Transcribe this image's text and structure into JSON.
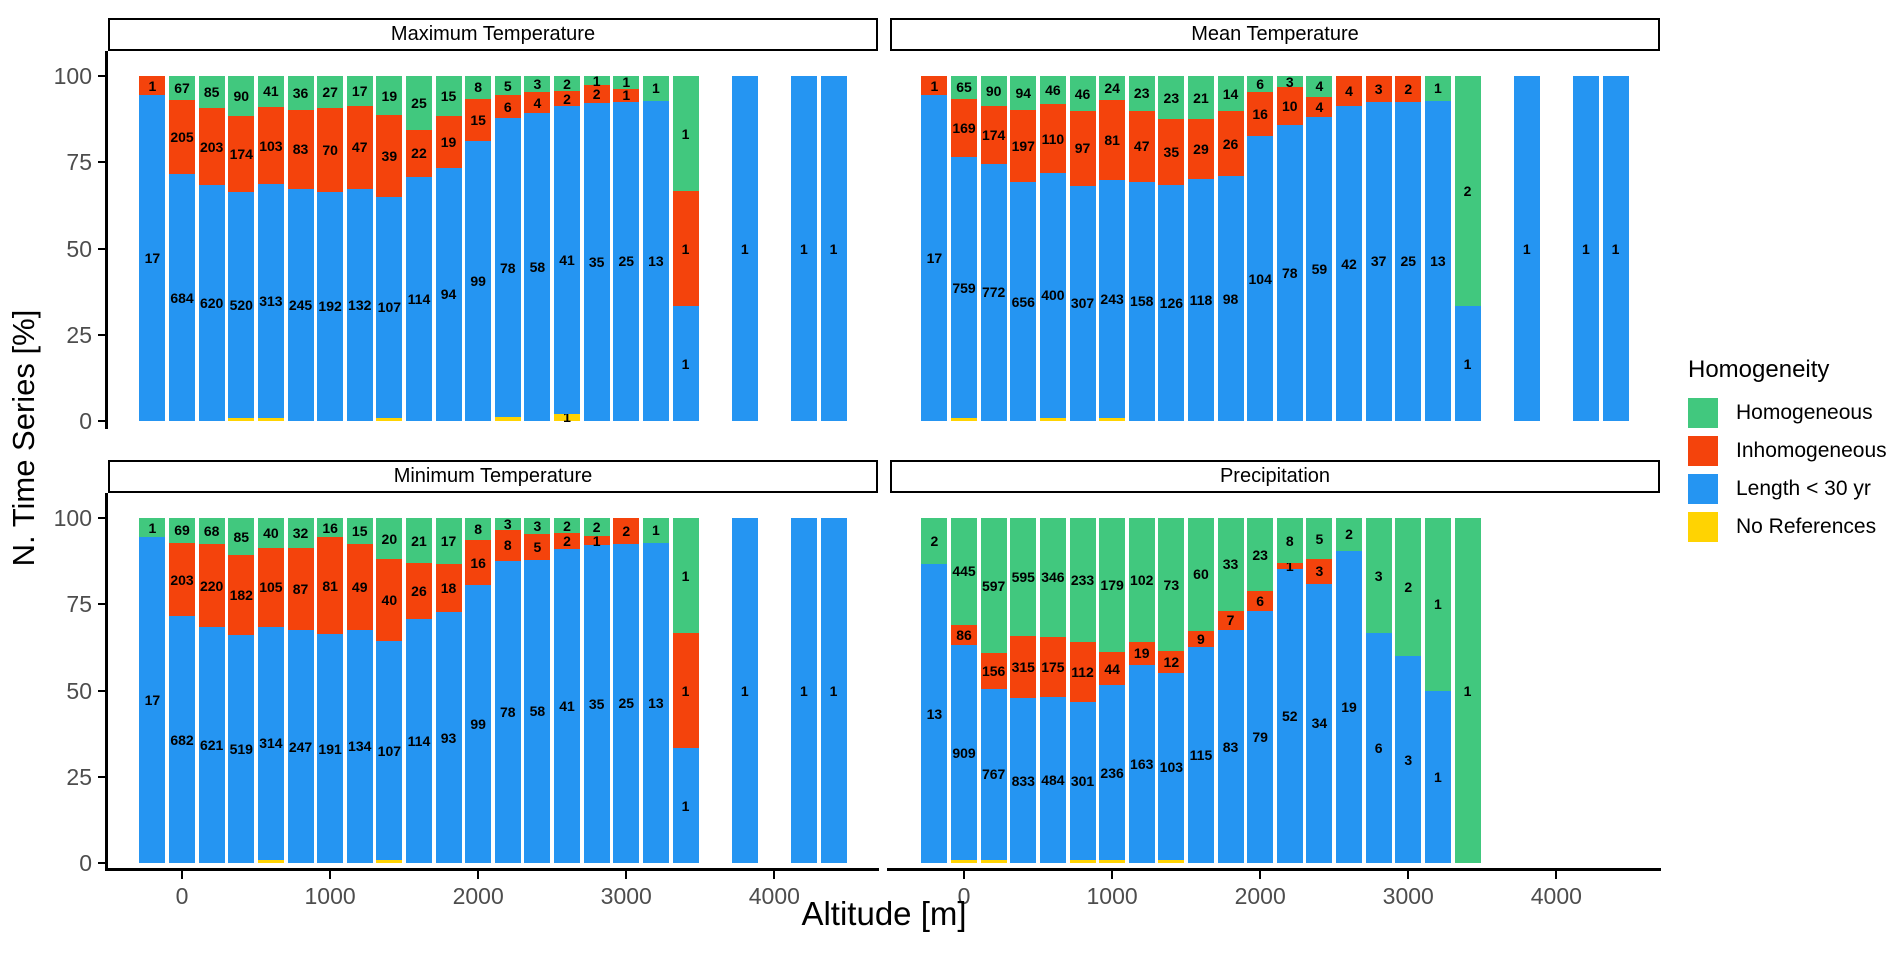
{
  "y_axis": {
    "label": "N. Time Series [%]",
    "ticks": [
      "0",
      "25",
      "50",
      "75",
      "100"
    ],
    "tick_values": [
      0,
      25,
      50,
      75,
      100
    ]
  },
  "x_axis": {
    "label": "Altitude [m]",
    "ticks": [
      "0",
      "1000",
      "2000",
      "3000",
      "4000"
    ],
    "tick_values": [
      0,
      1000,
      2000,
      3000,
      4000
    ]
  },
  "legend": {
    "title": "Homogeneity",
    "items": [
      {
        "label": "Homogeneous",
        "color": "#41C87E"
      },
      {
        "label": "Inhomogeneous",
        "color": "#F4430C"
      },
      {
        "label": "Length < 30 yr",
        "color": "#2595F2"
      },
      {
        "label": "No References",
        "color": "#FFD302"
      }
    ]
  },
  "chart_data": [
    {
      "type": "bar",
      "stacked": true,
      "unit": "percent_of_total",
      "title": "Maximum Temperature",
      "xlabel": "Altitude [m]",
      "ylabel": "N. Time Series [%]",
      "ylim": [
        0,
        100
      ],
      "categories": [
        -200,
        0,
        200,
        400,
        600,
        800,
        1000,
        1200,
        1400,
        1600,
        1800,
        2000,
        2200,
        2400,
        2600,
        2800,
        3000,
        3200,
        3400,
        3800,
        4200,
        4400
      ],
      "series": [
        {
          "name": "Homogeneous",
          "values": [
            0,
            67,
            85,
            90,
            41,
            36,
            27,
            17,
            19,
            25,
            15,
            8,
            5,
            3,
            2,
            1,
            1,
            1,
            1,
            0,
            0,
            0
          ]
        },
        {
          "name": "Inhomogeneous",
          "values": [
            1,
            205,
            203,
            174,
            103,
            83,
            70,
            47,
            39,
            22,
            19,
            15,
            6,
            4,
            2,
            2,
            1,
            0,
            1,
            0,
            0,
            0
          ]
        },
        {
          "name": "Length < 30 yr",
          "values": [
            17,
            684,
            620,
            520,
            313,
            245,
            192,
            132,
            107,
            114,
            94,
            99,
            78,
            58,
            41,
            35,
            25,
            13,
            1,
            1,
            1,
            1
          ]
        },
        {
          "name": "No References",
          "values": [
            0,
            0,
            0,
            1,
            1,
            0,
            0,
            0,
            1,
            0,
            0,
            0,
            1,
            0,
            1,
            0,
            0,
            0,
            0,
            0,
            0,
            0
          ]
        }
      ],
      "no_ref_labeled_categories": [
        2600
      ]
    },
    {
      "type": "bar",
      "stacked": true,
      "unit": "percent_of_total",
      "title": "Mean Temperature",
      "xlabel": "Altitude [m]",
      "ylabel": "N. Time Series [%]",
      "ylim": [
        0,
        100
      ],
      "categories": [
        -200,
        0,
        200,
        400,
        600,
        800,
        1000,
        1200,
        1400,
        1600,
        1800,
        2000,
        2200,
        2400,
        2600,
        2800,
        3000,
        3200,
        3400,
        3800,
        4200,
        4400
      ],
      "series": [
        {
          "name": "Homogeneous",
          "values": [
            0,
            65,
            90,
            94,
            46,
            46,
            24,
            23,
            23,
            21,
            14,
            6,
            3,
            4,
            0,
            0,
            0,
            1,
            2,
            0,
            0,
            0
          ]
        },
        {
          "name": "Inhomogeneous",
          "values": [
            1,
            169,
            174,
            197,
            110,
            97,
            81,
            47,
            35,
            29,
            26,
            16,
            10,
            4,
            4,
            3,
            2,
            0,
            0,
            0,
            0,
            0
          ]
        },
        {
          "name": "Length < 30 yr",
          "values": [
            17,
            759,
            772,
            656,
            400,
            307,
            243,
            158,
            126,
            118,
            98,
            104,
            78,
            59,
            42,
            37,
            25,
            13,
            1,
            1,
            1,
            1
          ]
        },
        {
          "name": "No References",
          "values": [
            0,
            1,
            0,
            0,
            1,
            0,
            1,
            0,
            0,
            0,
            0,
            0,
            0,
            0,
            0,
            0,
            0,
            0,
            0,
            0,
            0,
            0
          ]
        }
      ],
      "no_ref_labeled_categories": []
    },
    {
      "type": "bar",
      "stacked": true,
      "unit": "percent_of_total",
      "title": "Minimum Temperature",
      "xlabel": "Altitude [m]",
      "ylabel": "N. Time Series [%]",
      "ylim": [
        0,
        100
      ],
      "categories": [
        -200,
        0,
        200,
        400,
        600,
        800,
        1000,
        1200,
        1400,
        1600,
        1800,
        2000,
        2200,
        2400,
        2600,
        2800,
        3000,
        3200,
        3400,
        3800,
        4200,
        4400
      ],
      "series": [
        {
          "name": "Homogeneous",
          "values": [
            1,
            69,
            68,
            85,
            40,
            32,
            16,
            15,
            20,
            21,
            17,
            8,
            3,
            3,
            2,
            2,
            0,
            1,
            1,
            0,
            0,
            0
          ]
        },
        {
          "name": "Inhomogeneous",
          "values": [
            0,
            203,
            220,
            182,
            105,
            87,
            81,
            49,
            40,
            26,
            18,
            16,
            8,
            5,
            2,
            1,
            2,
            0,
            1,
            0,
            0,
            0
          ]
        },
        {
          "name": "Length < 30 yr",
          "values": [
            17,
            682,
            621,
            519,
            314,
            247,
            191,
            134,
            107,
            114,
            93,
            99,
            78,
            58,
            41,
            35,
            25,
            13,
            1,
            1,
            1,
            1
          ]
        },
        {
          "name": "No References",
          "values": [
            0,
            0,
            0,
            0,
            1,
            0,
            0,
            0,
            1,
            0,
            0,
            0,
            0,
            0,
            0,
            0,
            0,
            0,
            0,
            0,
            0,
            0
          ]
        }
      ],
      "no_ref_labeled_categories": []
    },
    {
      "type": "bar",
      "stacked": true,
      "unit": "percent_of_total",
      "title": "Precipitation",
      "xlabel": "Altitude [m]",
      "ylabel": "N. Time Series [%]",
      "ylim": [
        0,
        100
      ],
      "categories": [
        -200,
        0,
        200,
        400,
        600,
        800,
        1000,
        1200,
        1400,
        1600,
        1800,
        2000,
        2200,
        2400,
        2600,
        2800,
        3000,
        3200,
        3400
      ],
      "series": [
        {
          "name": "Homogeneous",
          "values": [
            2,
            445,
            597,
            595,
            346,
            233,
            179,
            102,
            73,
            60,
            33,
            23,
            8,
            5,
            2,
            3,
            2,
            1,
            1
          ]
        },
        {
          "name": "Inhomogeneous",
          "values": [
            0,
            86,
            156,
            315,
            175,
            112,
            44,
            19,
            12,
            9,
            7,
            6,
            1,
            3,
            0,
            0,
            0,
            0,
            0
          ]
        },
        {
          "name": "Length < 30 yr",
          "values": [
            13,
            909,
            767,
            833,
            484,
            301,
            236,
            163,
            103,
            115,
            83,
            79,
            52,
            34,
            19,
            6,
            3,
            1,
            0
          ]
        },
        {
          "name": "No References",
          "values": [
            0,
            1,
            1,
            0,
            0,
            1,
            1,
            0,
            1,
            0,
            0,
            0,
            0,
            0,
            0,
            0,
            0,
            0,
            0
          ]
        }
      ],
      "no_ref_labeled_categories": []
    }
  ]
}
